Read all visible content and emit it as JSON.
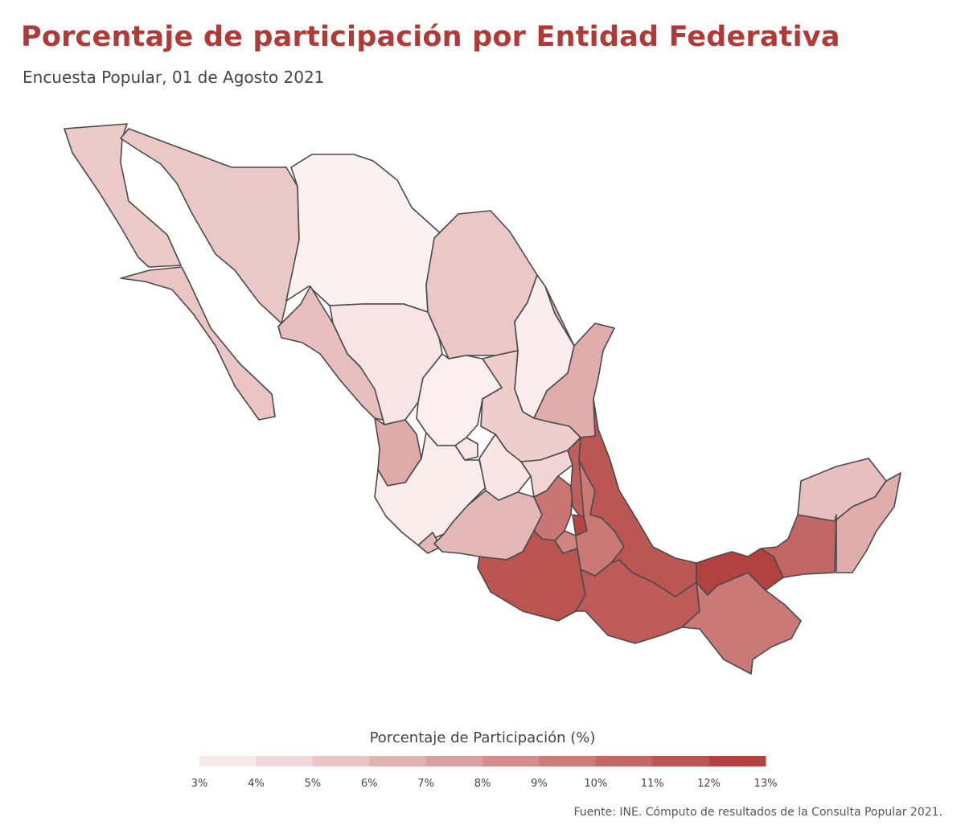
{
  "header": {
    "title": "Porcentaje de participación por Entidad Federativa",
    "subtitle": "Encuesta Popular, 01 de Agosto 2021"
  },
  "legend": {
    "title": "Porcentaje de Participación (%)",
    "ticks": [
      "3%",
      "4%",
      "5%",
      "6%",
      "7%",
      "8%",
      "9%",
      "10%",
      "11%",
      "12%",
      "13%"
    ],
    "color_low": "#fdf3f3",
    "color_high": "#b03a37"
  },
  "source": "Fuente: INE. Cómputo de resultados de la Consulta Popular 2021.",
  "chart_data": {
    "type": "heatmap",
    "kind": "choropleth",
    "scale": {
      "min": 3,
      "max": 13,
      "unit": "%"
    },
    "states": [
      {
        "name": "Baja California",
        "value": 5.2
      },
      {
        "name": "Baja California Sur",
        "value": 5.5
      },
      {
        "name": "Sonora",
        "value": 5.3
      },
      {
        "name": "Chihuahua",
        "value": 3.1
      },
      {
        "name": "Coahuila",
        "value": 5.4
      },
      {
        "name": "Nuevo León",
        "value": 3.3
      },
      {
        "name": "Tamaulipas",
        "value": 6.8
      },
      {
        "name": "Sinaloa",
        "value": 5.8
      },
      {
        "name": "Durango",
        "value": 3.8
      },
      {
        "name": "Zacatecas",
        "value": 3.2
      },
      {
        "name": "San Luis Potosí",
        "value": 5.0
      },
      {
        "name": "Nayarit",
        "value": 6.9
      },
      {
        "name": "Aguascalientes",
        "value": 3.6
      },
      {
        "name": "Jalisco",
        "value": 3.4
      },
      {
        "name": "Guanajuato",
        "value": 3.7
      },
      {
        "name": "Querétaro",
        "value": 4.6
      },
      {
        "name": "Colima",
        "value": 6.2
      },
      {
        "name": "Michoacán",
        "value": 6.2
      },
      {
        "name": "Estado de México",
        "value": 9.8
      },
      {
        "name": "Hidalgo",
        "value": 11.0
      },
      {
        "name": "Ciudad de México",
        "value": 12.4
      },
      {
        "name": "Morelos",
        "value": 9.0
      },
      {
        "name": "Tlaxcala",
        "value": 10.8
      },
      {
        "name": "Puebla",
        "value": 9.6
      },
      {
        "name": "Veracruz",
        "value": 11.5
      },
      {
        "name": "Guerrero",
        "value": 11.6
      },
      {
        "name": "Oaxaca",
        "value": 11.2
      },
      {
        "name": "Chiapas",
        "value": 9.6
      },
      {
        "name": "Tabasco",
        "value": 12.6
      },
      {
        "name": "Campeche",
        "value": 10.6
      },
      {
        "name": "Yucatán",
        "value": 5.8
      },
      {
        "name": "Quintana Roo",
        "value": 6.8
      }
    ]
  }
}
